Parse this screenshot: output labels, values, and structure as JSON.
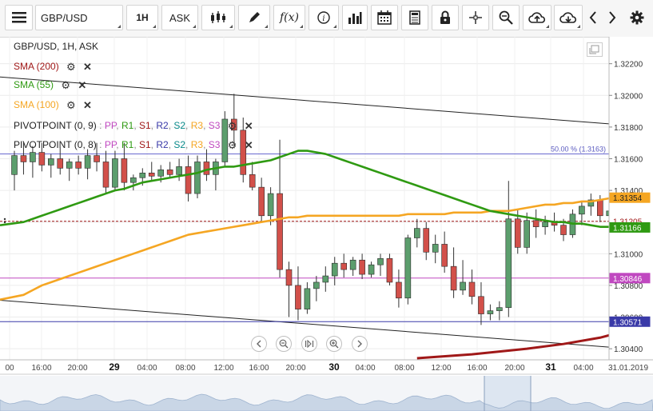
{
  "toolbar": {
    "symbol": "GBP/USD",
    "timeframe": "1H",
    "price_side": "ASK"
  },
  "legend": {
    "title": "GBP/USD, 1H, ASK",
    "indicators": [
      {
        "label": "SMA (200)",
        "color": "#a01818"
      },
      {
        "label": "SMA (55)",
        "color": "#2f9a12"
      },
      {
        "label": "SMA (100)",
        "color": "#f5a623"
      }
    ],
    "pivots": [
      {
        "prefix": "PIVOTPOINT (0, 9)",
        "parts": [
          "PP",
          "R1",
          "S1",
          "R2",
          "S2",
          "R3",
          "S3"
        ]
      },
      {
        "prefix": "PIVOTPOINT (0, 8)",
        "parts": [
          "PP",
          "R1",
          "S1",
          "R2",
          "S2",
          "R3",
          "S3"
        ]
      }
    ],
    "pivot_part_colors": [
      "#c048c0",
      "#2f9a12",
      "#a01818",
      "#3a3aa8",
      "#0a8a8a",
      "#f5a623",
      "#c048c0"
    ]
  },
  "chart_data": {
    "type": "candlestick",
    "symbol": "GBP/USD",
    "ylim": [
      1.3033,
      1.3237
    ],
    "y_ticks": [
      "1.32200",
      "1.32000",
      "1.31800",
      "1.31600",
      "1.31400",
      "1.31200",
      "1.31000",
      "1.30800",
      "1.30600",
      "1.30400"
    ],
    "x_tick_labels": [
      "00",
      "16:00",
      "20:00",
      "29",
      "04:00",
      "08:00",
      "12:00",
      "16:00",
      "20:00",
      "30",
      "04:00",
      "08:00",
      "12:00",
      "16:00",
      "20:00",
      "31",
      "04:00",
      "31.01.2019"
    ],
    "bold_x_labels": [
      "29",
      "30",
      "31"
    ],
    "fib_label": "50.00 % (1.3163)",
    "price_tags": [
      {
        "value": "1.31354",
        "color": "#f5a623",
        "text_color": "#222222"
      },
      {
        "value": "1.31205",
        "color": "#ffffff",
        "text_color": "#a01818"
      },
      {
        "value": "1.31166",
        "color": "#2f9a12",
        "text_color": "#ffffff"
      },
      {
        "value": "1.30846",
        "color": "#c048c0",
        "text_color": "#ffffff"
      },
      {
        "value": "1.30571",
        "color": "#3a3aa8",
        "text_color": "#ffffff"
      }
    ],
    "colors": {
      "up": "#5c9e6d",
      "down": "#d2504a"
    },
    "candles": [
      {
        "o": 1.315,
        "h": 1.3165,
        "l": 1.314,
        "c": 1.3162
      },
      {
        "o": 1.3162,
        "h": 1.317,
        "l": 1.315,
        "c": 1.3158
      },
      {
        "o": 1.3158,
        "h": 1.3168,
        "l": 1.3148,
        "c": 1.3164
      },
      {
        "o": 1.3164,
        "h": 1.317,
        "l": 1.3152,
        "c": 1.3156
      },
      {
        "o": 1.3156,
        "h": 1.3163,
        "l": 1.3148,
        "c": 1.316
      },
      {
        "o": 1.316,
        "h": 1.3167,
        "l": 1.315,
        "c": 1.3154
      },
      {
        "o": 1.3154,
        "h": 1.316,
        "l": 1.3146,
        "c": 1.3158
      },
      {
        "o": 1.3158,
        "h": 1.3162,
        "l": 1.315,
        "c": 1.3154
      },
      {
        "o": 1.3154,
        "h": 1.3166,
        "l": 1.3147,
        "c": 1.3162
      },
      {
        "o": 1.3162,
        "h": 1.317,
        "l": 1.3152,
        "c": 1.3158
      },
      {
        "o": 1.3158,
        "h": 1.3165,
        "l": 1.3138,
        "c": 1.3142
      },
      {
        "o": 1.3142,
        "h": 1.3165,
        "l": 1.314,
        "c": 1.316
      },
      {
        "o": 1.316,
        "h": 1.317,
        "l": 1.314,
        "c": 1.3145
      },
      {
        "o": 1.3145,
        "h": 1.315,
        "l": 1.314,
        "c": 1.3148
      },
      {
        "o": 1.3148,
        "h": 1.3154,
        "l": 1.3143,
        "c": 1.3151
      },
      {
        "o": 1.3151,
        "h": 1.3158,
        "l": 1.3146,
        "c": 1.3149
      },
      {
        "o": 1.3149,
        "h": 1.3156,
        "l": 1.3145,
        "c": 1.3153
      },
      {
        "o": 1.3153,
        "h": 1.3158,
        "l": 1.3148,
        "c": 1.315
      },
      {
        "o": 1.315,
        "h": 1.316,
        "l": 1.3146,
        "c": 1.3155
      },
      {
        "o": 1.3155,
        "h": 1.3162,
        "l": 1.3133,
        "c": 1.3138
      },
      {
        "o": 1.3138,
        "h": 1.3162,
        "l": 1.3135,
        "c": 1.3158
      },
      {
        "o": 1.3158,
        "h": 1.3166,
        "l": 1.3146,
        "c": 1.315
      },
      {
        "o": 1.315,
        "h": 1.316,
        "l": 1.314,
        "c": 1.3158
      },
      {
        "o": 1.3158,
        "h": 1.319,
        "l": 1.3155,
        "c": 1.3185
      },
      {
        "o": 1.3185,
        "h": 1.3201,
        "l": 1.3168,
        "c": 1.3178
      },
      {
        "o": 1.3178,
        "h": 1.3186,
        "l": 1.3145,
        "c": 1.315
      },
      {
        "o": 1.315,
        "h": 1.3158,
        "l": 1.314,
        "c": 1.3142
      },
      {
        "o": 1.3142,
        "h": 1.3148,
        "l": 1.312,
        "c": 1.3124
      },
      {
        "o": 1.3124,
        "h": 1.3142,
        "l": 1.3118,
        "c": 1.3138
      },
      {
        "o": 1.3138,
        "h": 1.3172,
        "l": 1.3085,
        "c": 1.309
      },
      {
        "o": 1.309,
        "h": 1.3095,
        "l": 1.306,
        "c": 1.308
      },
      {
        "o": 1.308,
        "h": 1.3092,
        "l": 1.3058,
        "c": 1.3065
      },
      {
        "o": 1.3065,
        "h": 1.3082,
        "l": 1.3062,
        "c": 1.3078
      },
      {
        "o": 1.3078,
        "h": 1.3086,
        "l": 1.307,
        "c": 1.3082
      },
      {
        "o": 1.3082,
        "h": 1.3092,
        "l": 1.3076,
        "c": 1.3086
      },
      {
        "o": 1.3086,
        "h": 1.3098,
        "l": 1.308,
        "c": 1.3094
      },
      {
        "o": 1.3094,
        "h": 1.31,
        "l": 1.3085,
        "c": 1.309
      },
      {
        "o": 1.309,
        "h": 1.3098,
        "l": 1.3086,
        "c": 1.3096
      },
      {
        "o": 1.3096,
        "h": 1.31,
        "l": 1.3084,
        "c": 1.3087
      },
      {
        "o": 1.3087,
        "h": 1.3095,
        "l": 1.3085,
        "c": 1.3093
      },
      {
        "o": 1.3093,
        "h": 1.31,
        "l": 1.3086,
        "c": 1.3097
      },
      {
        "o": 1.3097,
        "h": 1.31,
        "l": 1.308,
        "c": 1.3082
      },
      {
        "o": 1.3082,
        "h": 1.309,
        "l": 1.3066,
        "c": 1.3072
      },
      {
        "o": 1.3072,
        "h": 1.3112,
        "l": 1.3068,
        "c": 1.311
      },
      {
        "o": 1.311,
        "h": 1.3122,
        "l": 1.3104,
        "c": 1.3116
      },
      {
        "o": 1.3116,
        "h": 1.312,
        "l": 1.3096,
        "c": 1.3101
      },
      {
        "o": 1.3101,
        "h": 1.3112,
        "l": 1.3094,
        "c": 1.3106
      },
      {
        "o": 1.3106,
        "h": 1.3114,
        "l": 1.3088,
        "c": 1.3092
      },
      {
        "o": 1.3092,
        "h": 1.3104,
        "l": 1.3072,
        "c": 1.3077
      },
      {
        "o": 1.3077,
        "h": 1.3096,
        "l": 1.3074,
        "c": 1.3082
      },
      {
        "o": 1.3082,
        "h": 1.309,
        "l": 1.3068,
        "c": 1.3073
      },
      {
        "o": 1.3073,
        "h": 1.3082,
        "l": 1.3055,
        "c": 1.3062
      },
      {
        "o": 1.3062,
        "h": 1.3068,
        "l": 1.3058,
        "c": 1.3064
      },
      {
        "o": 1.3064,
        "h": 1.307,
        "l": 1.3058,
        "c": 1.3066
      },
      {
        "o": 1.3066,
        "h": 1.3146,
        "l": 1.306,
        "c": 1.3122
      },
      {
        "o": 1.3122,
        "h": 1.3128,
        "l": 1.31,
        "c": 1.3104
      },
      {
        "o": 1.3104,
        "h": 1.3126,
        "l": 1.31,
        "c": 1.3121
      },
      {
        "o": 1.3121,
        "h": 1.3128,
        "l": 1.311,
        "c": 1.3117
      },
      {
        "o": 1.3117,
        "h": 1.3124,
        "l": 1.3112,
        "c": 1.312
      },
      {
        "o": 1.312,
        "h": 1.3126,
        "l": 1.3114,
        "c": 1.3118
      },
      {
        "o": 1.3118,
        "h": 1.3122,
        "l": 1.3108,
        "c": 1.3112
      },
      {
        "o": 1.3112,
        "h": 1.3128,
        "l": 1.311,
        "c": 1.3125
      },
      {
        "o": 1.3125,
        "h": 1.3133,
        "l": 1.3118,
        "c": 1.313
      },
      {
        "o": 1.313,
        "h": 1.3138,
        "l": 1.3124,
        "c": 1.3134
      },
      {
        "o": 1.3134,
        "h": 1.3137,
        "l": 1.312,
        "c": 1.3124
      },
      {
        "o": 1.3124,
        "h": 1.313,
        "l": 1.3118,
        "c": 1.3127
      },
      {
        "o": 1.3127,
        "h": 1.3134,
        "l": 1.3122,
        "c": 1.3131
      }
    ],
    "sma_55": [
      1.3118,
      1.312,
      1.3122,
      1.3124,
      1.3126,
      1.3128,
      1.313,
      1.3132,
      1.3134,
      1.3136,
      1.3138,
      1.314,
      1.3141,
      1.3143,
      1.3145,
      1.3146,
      1.3147,
      1.3148,
      1.3149,
      1.315,
      1.3151,
      1.3153,
      1.3154,
      1.3155,
      1.3155,
      1.3156,
      1.3157,
      1.3158,
      1.3159,
      1.3161,
      1.3163,
      1.3165,
      1.3165,
      1.3164,
      1.3163,
      1.3161,
      1.3159,
      1.3157,
      1.3155,
      1.3153,
      1.3151,
      1.3149,
      1.3147,
      1.3145,
      1.3143,
      1.3141,
      1.3139,
      1.3137,
      1.3135,
      1.3133,
      1.3131,
      1.3129,
      1.3127,
      1.3126,
      1.3125,
      1.3124,
      1.3123,
      1.3122,
      1.3121,
      1.312,
      1.312,
      1.3119,
      1.3119,
      1.3118,
      1.3117,
      1.3117,
      1.3117
    ],
    "sma_100": [
      1.3071,
      1.3074,
      1.3077,
      1.308,
      1.3082,
      1.3084,
      1.3086,
      1.3088,
      1.309,
      1.3092,
      1.3094,
      1.3096,
      1.3098,
      1.31,
      1.3102,
      1.3104,
      1.3106,
      1.3108,
      1.311,
      1.3112,
      1.3113,
      1.3114,
      1.3115,
      1.3116,
      1.3117,
      1.3118,
      1.3119,
      1.312,
      1.3121,
      1.3122,
      1.3123,
      1.3123,
      1.3124,
      1.3124,
      1.3124,
      1.3124,
      1.3124,
      1.3124,
      1.3124,
      1.3124,
      1.3124,
      1.3124,
      1.3124,
      1.3125,
      1.3125,
      1.3125,
      1.3125,
      1.3125,
      1.3126,
      1.3126,
      1.3126,
      1.3126,
      1.3127,
      1.3127,
      1.3127,
      1.3128,
      1.3129,
      1.313,
      1.3131,
      1.3131,
      1.3132,
      1.3132,
      1.3133,
      1.3133,
      1.3134,
      1.3135,
      1.3135
    ],
    "sma_200": [
      {
        "i": 44,
        "v": 1.3034
      },
      {
        "i": 50,
        "v": 1.30365
      },
      {
        "i": 56,
        "v": 1.304
      },
      {
        "i": 60,
        "v": 1.3043
      },
      {
        "i": 64,
        "v": 1.3047
      },
      {
        "i": 66,
        "v": 1.305
      }
    ],
    "trend_lines": [
      {
        "i1": 0,
        "v1": 1.3211,
        "i2": 66,
        "v2": 1.3182
      },
      {
        "i1": 0,
        "v1": 1.307,
        "i2": 66,
        "v2": 1.3041
      }
    ],
    "h_lines": [
      {
        "v": 1.3163,
        "color": "#6a6ad0"
      },
      {
        "v": 1.31205,
        "color": "#a01818",
        "dash": true
      },
      {
        "v": 1.30846,
        "color": "#c048c0"
      },
      {
        "v": 1.30571,
        "color": "#3a3aa8"
      }
    ]
  }
}
